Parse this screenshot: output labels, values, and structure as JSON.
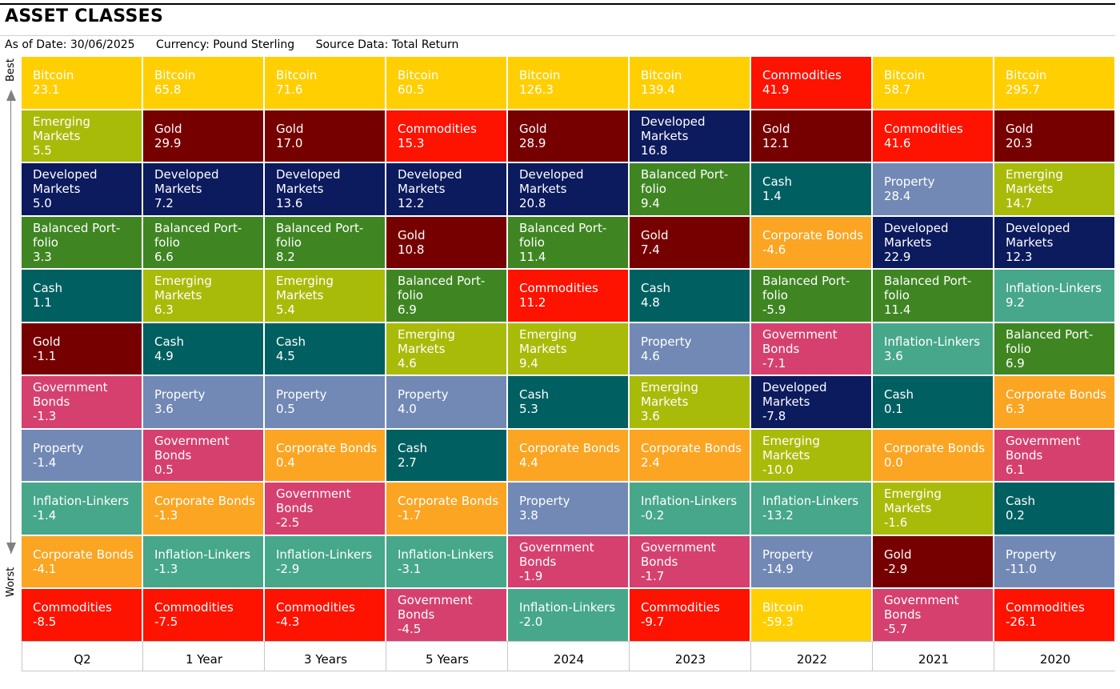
{
  "header": {
    "title": "ASSET CLASSES",
    "as_of": "As of Date: 30/06/2025",
    "currency": "Currency: Pound Sterling",
    "source": "Source Data: Total Return"
  },
  "axis": {
    "best": "Best",
    "worst": "Worst"
  },
  "colors": {
    "Bitcoin": "#ffcf01",
    "Gold": "#760000",
    "Developed Markets": "#0c1a5e",
    "Balanced Portfolio": "#3f8622",
    "Cash": "#005f61",
    "Emerging Markets": "#a9bb09",
    "Government Bonds": "#d6406f",
    "Property": "#7289b5",
    "Inflation-Linkers": "#47a78a",
    "Corporate Bonds": "#fba522",
    "Commodities": "#fe1200"
  },
  "chart_data": {
    "type": "table",
    "columns": [
      "Q2",
      "1 Year",
      "3 Years",
      "5 Years",
      "2024",
      "2023",
      "2022",
      "2021",
      "2020"
    ],
    "rankings": [
      [
        {
          "name": "Bitcoin",
          "label": "Bitcoin",
          "value": "23.1"
        },
        {
          "name": "Emerging Markets",
          "label": "Emerging\nMarkets",
          "value": "5.5"
        },
        {
          "name": "Developed Markets",
          "label": "Developed\nMarkets",
          "value": "5.0"
        },
        {
          "name": "Balanced Portfolio",
          "label": "Balanced Port-\nfolio",
          "value": "3.3"
        },
        {
          "name": "Cash",
          "label": "Cash",
          "value": "1.1"
        },
        {
          "name": "Gold",
          "label": "Gold",
          "value": "-1.1"
        },
        {
          "name": "Government Bonds",
          "label": "Government\nBonds",
          "value": "-1.3"
        },
        {
          "name": "Property",
          "label": "Property",
          "value": "-1.4"
        },
        {
          "name": "Inflation-Linkers",
          "label": "Inflation-Linkers",
          "value": "-1.4"
        },
        {
          "name": "Corporate Bonds",
          "label": "Corporate Bonds",
          "value": "-4.1"
        },
        {
          "name": "Commodities",
          "label": "Commodities",
          "value": "-8.5"
        }
      ],
      [
        {
          "name": "Bitcoin",
          "label": "Bitcoin",
          "value": "65.8"
        },
        {
          "name": "Gold",
          "label": "Gold",
          "value": "29.9"
        },
        {
          "name": "Developed Markets",
          "label": "Developed\nMarkets",
          "value": "7.2"
        },
        {
          "name": "Balanced Portfolio",
          "label": "Balanced Port-\nfolio",
          "value": "6.6"
        },
        {
          "name": "Emerging Markets",
          "label": "Emerging\nMarkets",
          "value": "6.3"
        },
        {
          "name": "Cash",
          "label": "Cash",
          "value": "4.9"
        },
        {
          "name": "Property",
          "label": "Property",
          "value": "3.6"
        },
        {
          "name": "Government Bonds",
          "label": "Government\nBonds",
          "value": "0.5"
        },
        {
          "name": "Corporate Bonds",
          "label": "Corporate Bonds",
          "value": "-1.3"
        },
        {
          "name": "Inflation-Linkers",
          "label": "Inflation-Linkers",
          "value": "-1.3"
        },
        {
          "name": "Commodities",
          "label": "Commodities",
          "value": "-7.5"
        }
      ],
      [
        {
          "name": "Bitcoin",
          "label": "Bitcoin",
          "value": "71.6"
        },
        {
          "name": "Gold",
          "label": "Gold",
          "value": "17.0"
        },
        {
          "name": "Developed Markets",
          "label": "Developed\nMarkets",
          "value": "13.6"
        },
        {
          "name": "Balanced Portfolio",
          "label": "Balanced Port-\nfolio",
          "value": "8.2"
        },
        {
          "name": "Emerging Markets",
          "label": "Emerging\nMarkets",
          "value": "5.4"
        },
        {
          "name": "Cash",
          "label": "Cash",
          "value": "4.5"
        },
        {
          "name": "Property",
          "label": "Property",
          "value": "0.5"
        },
        {
          "name": "Corporate Bonds",
          "label": "Corporate Bonds",
          "value": "0.4"
        },
        {
          "name": "Government Bonds",
          "label": "Government\nBonds",
          "value": "-2.5"
        },
        {
          "name": "Inflation-Linkers",
          "label": "Inflation-Linkers",
          "value": "-2.9"
        },
        {
          "name": "Commodities",
          "label": "Commodities",
          "value": "-4.3"
        }
      ],
      [
        {
          "name": "Bitcoin",
          "label": "Bitcoin",
          "value": "60.5"
        },
        {
          "name": "Commodities",
          "label": "Commodities",
          "value": "15.3"
        },
        {
          "name": "Developed Markets",
          "label": "Developed\nMarkets",
          "value": "12.2"
        },
        {
          "name": "Gold",
          "label": "Gold",
          "value": "10.8"
        },
        {
          "name": "Balanced Portfolio",
          "label": "Balanced Port-\nfolio",
          "value": "6.9"
        },
        {
          "name": "Emerging Markets",
          "label": "Emerging\nMarkets",
          "value": "4.6"
        },
        {
          "name": "Property",
          "label": "Property",
          "value": "4.0"
        },
        {
          "name": "Cash",
          "label": "Cash",
          "value": "2.7"
        },
        {
          "name": "Corporate Bonds",
          "label": "Corporate Bonds",
          "value": "-1.7"
        },
        {
          "name": "Inflation-Linkers",
          "label": "Inflation-Linkers",
          "value": "-3.1"
        },
        {
          "name": "Government Bonds",
          "label": "Government\nBonds",
          "value": "-4.5"
        }
      ],
      [
        {
          "name": "Bitcoin",
          "label": "Bitcoin",
          "value": "126.3"
        },
        {
          "name": "Gold",
          "label": "Gold",
          "value": "28.9"
        },
        {
          "name": "Developed Markets",
          "label": "Developed\nMarkets",
          "value": "20.8"
        },
        {
          "name": "Balanced Portfolio",
          "label": "Balanced Port-\nfolio",
          "value": "11.4"
        },
        {
          "name": "Commodities",
          "label": "Commodities",
          "value": "11.2"
        },
        {
          "name": "Emerging Markets",
          "label": "Emerging\nMarkets",
          "value": "9.4"
        },
        {
          "name": "Cash",
          "label": "Cash",
          "value": "5.3"
        },
        {
          "name": "Corporate Bonds",
          "label": "Corporate Bonds",
          "value": "4.4"
        },
        {
          "name": "Property",
          "label": "Property",
          "value": "3.8"
        },
        {
          "name": "Government Bonds",
          "label": "Government\nBonds",
          "value": "-1.9"
        },
        {
          "name": "Inflation-Linkers",
          "label": "Inflation-Linkers",
          "value": "-2.0"
        }
      ],
      [
        {
          "name": "Bitcoin",
          "label": "Bitcoin",
          "value": "139.4"
        },
        {
          "name": "Developed Markets",
          "label": "Developed\nMarkets",
          "value": "16.8"
        },
        {
          "name": "Balanced Portfolio",
          "label": "Balanced Port-\nfolio",
          "value": "9.4"
        },
        {
          "name": "Gold",
          "label": "Gold",
          "value": "7.4"
        },
        {
          "name": "Cash",
          "label": "Cash",
          "value": "4.8"
        },
        {
          "name": "Property",
          "label": "Property",
          "value": "4.6"
        },
        {
          "name": "Emerging Markets",
          "label": "Emerging\nMarkets",
          "value": "3.6"
        },
        {
          "name": "Corporate Bonds",
          "label": "Corporate Bonds",
          "value": "2.4"
        },
        {
          "name": "Inflation-Linkers",
          "label": "Inflation-Linkers",
          "value": "-0.2"
        },
        {
          "name": "Government Bonds",
          "label": "Government\nBonds",
          "value": "-1.7"
        },
        {
          "name": "Commodities",
          "label": "Commodities",
          "value": "-9.7"
        }
      ],
      [
        {
          "name": "Commodities",
          "label": "Commodities",
          "value": "41.9"
        },
        {
          "name": "Gold",
          "label": "Gold",
          "value": "12.1"
        },
        {
          "name": "Cash",
          "label": "Cash",
          "value": "1.4"
        },
        {
          "name": "Corporate Bonds",
          "label": "Corporate Bonds",
          "value": "-4.6"
        },
        {
          "name": "Balanced Portfolio",
          "label": "Balanced Port-\nfolio",
          "value": "-5.9"
        },
        {
          "name": "Government Bonds",
          "label": "Government\nBonds",
          "value": "-7.1"
        },
        {
          "name": "Developed Markets",
          "label": "Developed\nMarkets",
          "value": "-7.8"
        },
        {
          "name": "Emerging Markets",
          "label": "Emerging\nMarkets",
          "value": "-10.0"
        },
        {
          "name": "Inflation-Linkers",
          "label": "Inflation-Linkers",
          "value": "-13.2"
        },
        {
          "name": "Property",
          "label": "Property",
          "value": "-14.9"
        },
        {
          "name": "Bitcoin",
          "label": "Bitcoin",
          "value": "-59.3"
        }
      ],
      [
        {
          "name": "Bitcoin",
          "label": "Bitcoin",
          "value": "58.7"
        },
        {
          "name": "Commodities",
          "label": "Commodities",
          "value": "41.6"
        },
        {
          "name": "Property",
          "label": "Property",
          "value": "28.4"
        },
        {
          "name": "Developed Markets",
          "label": "Developed\nMarkets",
          "value": "22.9"
        },
        {
          "name": "Balanced Portfolio",
          "label": "Balanced Port-\nfolio",
          "value": "11.4"
        },
        {
          "name": "Inflation-Linkers",
          "label": "Inflation-Linkers",
          "value": "3.6"
        },
        {
          "name": "Cash",
          "label": "Cash",
          "value": "0.1"
        },
        {
          "name": "Corporate Bonds",
          "label": "Corporate Bonds",
          "value": "0.0"
        },
        {
          "name": "Emerging Markets",
          "label": "Emerging\nMarkets",
          "value": "-1.6"
        },
        {
          "name": "Gold",
          "label": "Gold",
          "value": "-2.9"
        },
        {
          "name": "Government Bonds",
          "label": "Government\nBonds",
          "value": "-5.7"
        }
      ],
      [
        {
          "name": "Bitcoin",
          "label": "Bitcoin",
          "value": "295.7"
        },
        {
          "name": "Gold",
          "label": "Gold",
          "value": "20.3"
        },
        {
          "name": "Emerging Markets",
          "label": "Emerging\nMarkets",
          "value": "14.7"
        },
        {
          "name": "Developed Markets",
          "label": "Developed\nMarkets",
          "value": "12.3"
        },
        {
          "name": "Inflation-Linkers",
          "label": "Inflation-Linkers",
          "value": "9.2"
        },
        {
          "name": "Balanced Portfolio",
          "label": "Balanced Port-\nfolio",
          "value": "6.9"
        },
        {
          "name": "Corporate Bonds",
          "label": "Corporate Bonds",
          "value": "6.3"
        },
        {
          "name": "Government Bonds",
          "label": "Government\nBonds",
          "value": "6.1"
        },
        {
          "name": "Cash",
          "label": "Cash",
          "value": "0.2"
        },
        {
          "name": "Property",
          "label": "Property",
          "value": "-11.0"
        },
        {
          "name": "Commodities",
          "label": "Commodities",
          "value": "-26.1"
        }
      ]
    ]
  }
}
